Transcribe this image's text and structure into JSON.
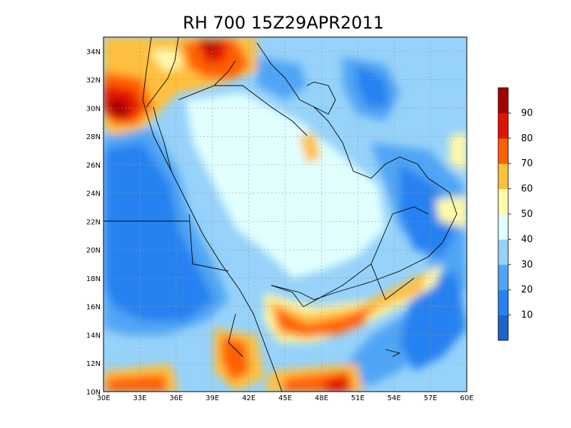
{
  "title": "RH 700 15Z29APR2011",
  "map": {
    "lon_range": [
      30,
      60
    ],
    "lat_range": [
      10,
      35
    ],
    "lon_ticks": [
      "30E",
      "33E",
      "36E",
      "39E",
      "42E",
      "45E",
      "48E",
      "51E",
      "54E",
      "57E",
      "60E"
    ],
    "lat_ticks": [
      "10N",
      "12N",
      "14N",
      "16N",
      "18N",
      "20N",
      "22N",
      "24N",
      "26N",
      "28N",
      "30N",
      "32N",
      "34N"
    ],
    "grid": true
  },
  "colorbar": {
    "labels": [
      "10",
      "20",
      "30",
      "40",
      "50",
      "60",
      "70",
      "80",
      "90"
    ],
    "colors": [
      "#1e64c8",
      "#2882f0",
      "#50a5f5",
      "#96d2fa",
      "#e1ffff",
      "#fffaaa",
      "#ffc03c",
      "#ff6000",
      "#e11400",
      "#a50000"
    ]
  }
}
